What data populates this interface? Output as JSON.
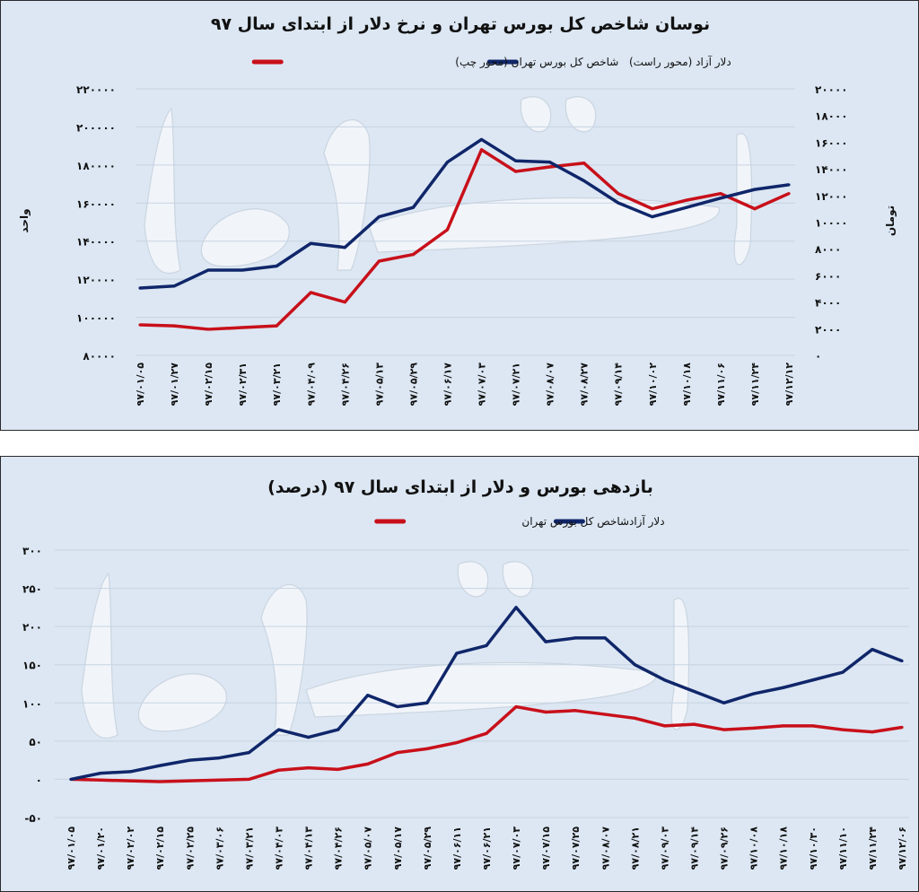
{
  "watermark": "دنیای اقتصاد",
  "colors": {
    "background": "#dce7f3",
    "red_series": "#c8101a",
    "blue_series": "#10266a",
    "grid": "#c7d3e2"
  },
  "chart_data": [
    {
      "type": "line",
      "title": "نوسان شاخص کل بورس تهران و نرخ دلار از ابتدای سال ۹۷",
      "ylabel_left": "واحد",
      "ylabel_right": "تومان",
      "legend_placement": "top",
      "grid": true,
      "ylim_left": [
        80000,
        220000
      ],
      "ylim_right": [
        0,
        20000
      ],
      "yticks_left": [
        {
          "value": 80000,
          "label": "۸۰۰۰۰"
        },
        {
          "value": 100000,
          "label": "۱۰۰۰۰۰"
        },
        {
          "value": 120000,
          "label": "۱۲۰۰۰۰"
        },
        {
          "value": 140000,
          "label": "۱۴۰۰۰۰"
        },
        {
          "value": 160000,
          "label": "۱۶۰۰۰۰"
        },
        {
          "value": 180000,
          "label": "۱۸۰۰۰۰"
        },
        {
          "value": 200000,
          "label": "۲۰۰۰۰۰"
        },
        {
          "value": 220000,
          "label": "۲۲۰۰۰۰"
        }
      ],
      "yticks_right": [
        {
          "value": 0,
          "label": "۰"
        },
        {
          "value": 2000,
          "label": "۲۰۰۰"
        },
        {
          "value": 4000,
          "label": "۴۰۰۰"
        },
        {
          "value": 6000,
          "label": "۶۰۰۰"
        },
        {
          "value": 8000,
          "label": "۸۰۰۰"
        },
        {
          "value": 10000,
          "label": "۱۰۰۰۰"
        },
        {
          "value": 12000,
          "label": "۱۲۰۰۰"
        },
        {
          "value": 14000,
          "label": "۱۴۰۰۰"
        },
        {
          "value": 16000,
          "label": "۱۶۰۰۰"
        },
        {
          "value": 18000,
          "label": "۱۸۰۰۰"
        },
        {
          "value": 20000,
          "label": "۲۰۰۰۰"
        }
      ],
      "categories": [
        "۹۷/۰۱/۰۵",
        "۹۷/۰۱/۲۷",
        "۹۷/۰۲/۱۵",
        "۹۷/۰۲/۳۱",
        "۹۷/۰۳/۲۱",
        "۹۷/۰۴/۰۹",
        "۹۷/۰۴/۲۶",
        "۹۷/۰۵/۱۳",
        "۹۷/۰۵/۲۹",
        "۹۷/۰۶/۱۷",
        "۹۷/۰۷/۰۳",
        "۹۷/۰۷/۲۱",
        "۹۷/۰۸/۰۷",
        "۹۷/۰۸/۲۷",
        "۹۷/۰۹/۱۴",
        "۹۷/۱۰/۰۲",
        "۹۷/۱۰/۱۸",
        "۹۷/۱۱/۰۶",
        "۹۷/۱۱/۲۴",
        "۹۷/۱۲/۱۲"
      ],
      "series": [
        {
          "name": "دلار آزاد (محور راست)",
          "axis": "right",
          "color": "#10266a",
          "values": [
            5050,
            5200,
            6400,
            6400,
            6700,
            8400,
            8100,
            10400,
            11100,
            14500,
            16200,
            14600,
            14500,
            13100,
            11450,
            10400,
            11100,
            11800,
            12450,
            12800
          ]
        },
        {
          "name": "شاخص کل بورس تهران (محور چپ)",
          "axis": "left",
          "color": "#c8101a",
          "values": [
            96000,
            95500,
            93700,
            94600,
            95500,
            113000,
            108000,
            129500,
            133000,
            146000,
            188000,
            176600,
            179000,
            181000,
            165000,
            157000,
            161500,
            165000,
            157000,
            165000
          ]
        }
      ]
    },
    {
      "type": "line",
      "title": "بازدهی بورس و دلار از ابتدای سال ۹۷ (درصد)",
      "legend_placement": "top",
      "grid": true,
      "ylim": [
        -50,
        300
      ],
      "yticks": [
        {
          "value": -50,
          "label": "-۵۰"
        },
        {
          "value": 0,
          "label": "۰"
        },
        {
          "value": 50,
          "label": "۵۰"
        },
        {
          "value": 100,
          "label": "۱۰۰"
        },
        {
          "value": 150,
          "label": "۱۵۰"
        },
        {
          "value": 200,
          "label": "۲۰۰"
        },
        {
          "value": 250,
          "label": "۲۵۰"
        },
        {
          "value": 300,
          "label": "۳۰۰"
        }
      ],
      "categories": [
        "۹۷/۰۱/۰۵",
        "۹۷/۰۱/۲۰",
        "۹۷/۰۲/۰۲",
        "۹۷/۰۲/۱۵",
        "۹۷/۰۲/۲۵",
        "۹۷/۰۳/۰۶",
        "۹۷/۰۳/۲۱",
        "۹۷/۰۴/۰۳",
        "۹۷/۰۴/۱۳",
        "۹۷/۰۴/۲۶",
        "۹۷/۰۵/۰۷",
        "۹۷/۰۵/۱۷",
        "۹۷/۰۵/۲۹",
        "۹۷/۰۶/۱۱",
        "۹۷/۰۶/۲۱",
        "۹۷/۰۷/۰۳",
        "۹۷/۰۷/۱۵",
        "۹۷/۰۷/۲۵",
        "۹۷/۰۸/۰۷",
        "۹۷/۰۸/۲۱",
        "۹۷/۰۹/۰۳",
        "۹۷/۰۹/۱۴",
        "۹۷/۰۹/۲۶",
        "۹۷/۱۰/۰۸",
        "۹۷/۱۰/۱۸",
        "۹۷/۱۰/۳۰",
        "۹۷/۱۱/۱۰",
        "۹۷/۱۱/۲۴",
        "۹۷/۱۲/۰۶"
      ],
      "series": [
        {
          "name": "دلار آزاد",
          "color": "#10266a",
          "values": [
            0,
            8,
            10,
            18,
            25,
            28,
            35,
            65,
            55,
            65,
            110,
            95,
            100,
            165,
            175,
            225,
            180,
            185,
            185,
            150,
            130,
            115,
            100,
            112,
            120,
            130,
            140,
            170,
            155
          ]
        },
        {
          "name": "شاخص کل بورس تهران",
          "color": "#c8101a",
          "values": [
            0,
            -1,
            -2,
            -3,
            -2,
            -1,
            0,
            12,
            15,
            13,
            20,
            35,
            40,
            48,
            60,
            95,
            88,
            90,
            85,
            80,
            70,
            72,
            65,
            67,
            70,
            70,
            65,
            62,
            68
          ]
        }
      ]
    }
  ]
}
